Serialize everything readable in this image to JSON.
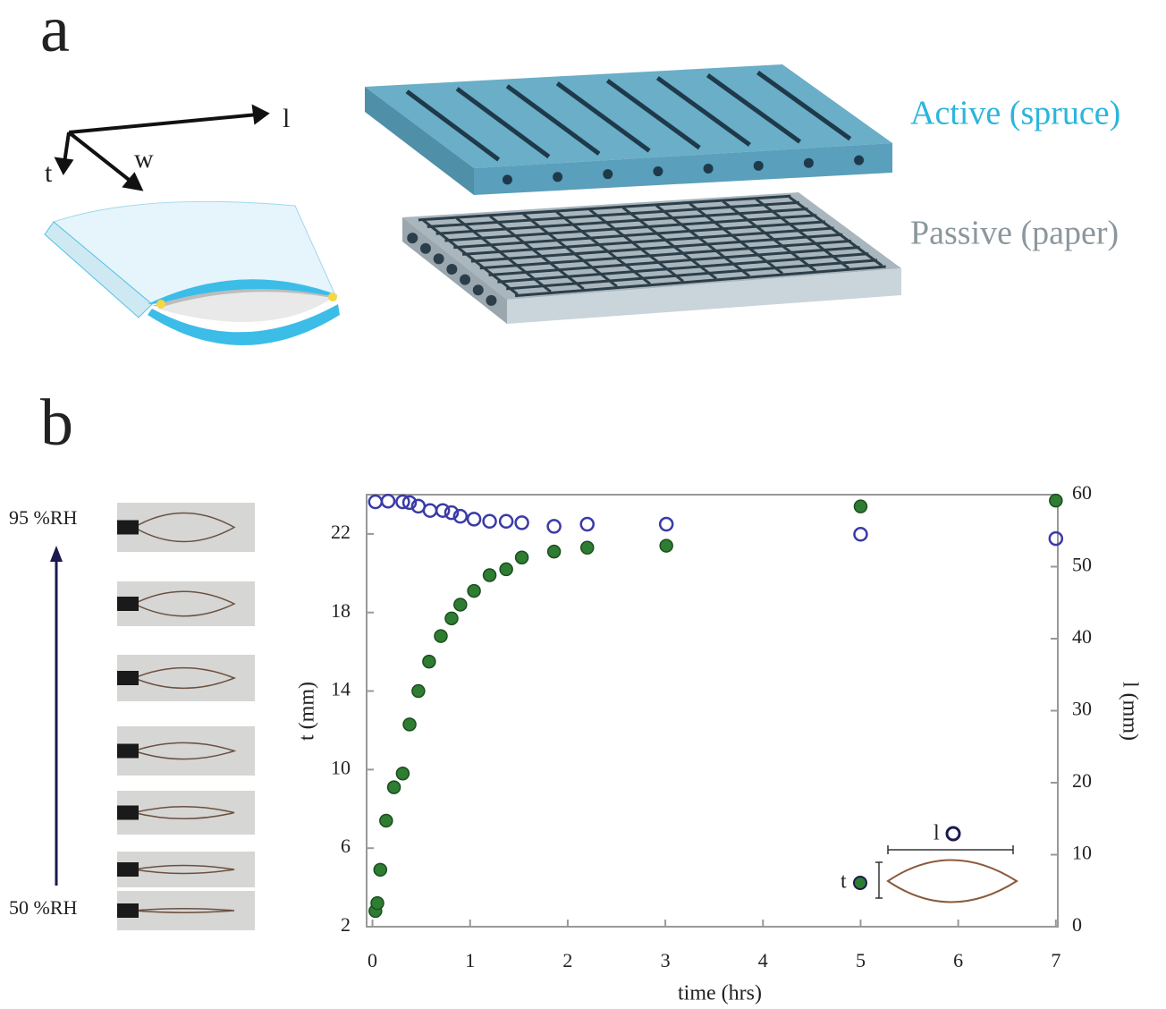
{
  "panel_a": {
    "label": "a",
    "axes": [
      "l",
      "w",
      "t"
    ],
    "layers": [
      "Active (spruce)",
      "Passive (paper)"
    ]
  },
  "panel_b": {
    "label": "b",
    "humidity": [
      "95 %RH",
      "50 %RH"
    ]
  },
  "chart_data": {
    "type": "scatter",
    "x_label": "time (hrs)",
    "y_label": "t (mm)",
    "y2_label": "l (mm)",
    "xlim": [
      -0.06,
      7.02
    ],
    "xticks": [
      0,
      1,
      2,
      3,
      4,
      5,
      6,
      7
    ],
    "ylim": [
      2,
      24
    ],
    "yticks": [
      2,
      6,
      10,
      14,
      18,
      22
    ],
    "y2lim": [
      0,
      60
    ],
    "y2ticks": [
      0,
      10,
      20,
      30,
      40,
      50,
      60
    ],
    "grid": false,
    "series": [
      {
        "name": "t",
        "color": "#2e7d32",
        "fill": true,
        "axis": "y",
        "x": [
          0.03,
          0.05,
          0.08,
          0.14,
          0.22,
          0.31,
          0.38,
          0.47,
          0.58,
          0.7,
          0.81,
          0.9,
          1.04,
          1.2,
          1.37,
          1.53,
          1.86,
          2.2,
          3.01,
          5.0,
          7.0
        ],
        "values": [
          2.8,
          3.2,
          4.9,
          7.4,
          9.1,
          9.8,
          12.3,
          14.0,
          15.5,
          16.8,
          17.7,
          18.4,
          19.1,
          19.9,
          20.2,
          20.8,
          21.1,
          21.3,
          21.4,
          23.4,
          23.7
        ]
      },
      {
        "name": "l",
        "color": "#3a3aa8",
        "fill": false,
        "axis": "y2",
        "x": [
          0.03,
          0.16,
          0.31,
          0.38,
          0.47,
          0.59,
          0.72,
          0.81,
          0.9,
          1.04,
          1.2,
          1.37,
          1.53,
          1.86,
          2.2,
          3.01,
          5.0,
          7.0
        ],
        "values": [
          59.0,
          59.1,
          59.0,
          58.9,
          58.4,
          57.8,
          57.8,
          57.5,
          57.0,
          56.6,
          56.3,
          56.3,
          56.1,
          55.6,
          55.9,
          55.9,
          54.5,
          53.9
        ]
      }
    ]
  }
}
